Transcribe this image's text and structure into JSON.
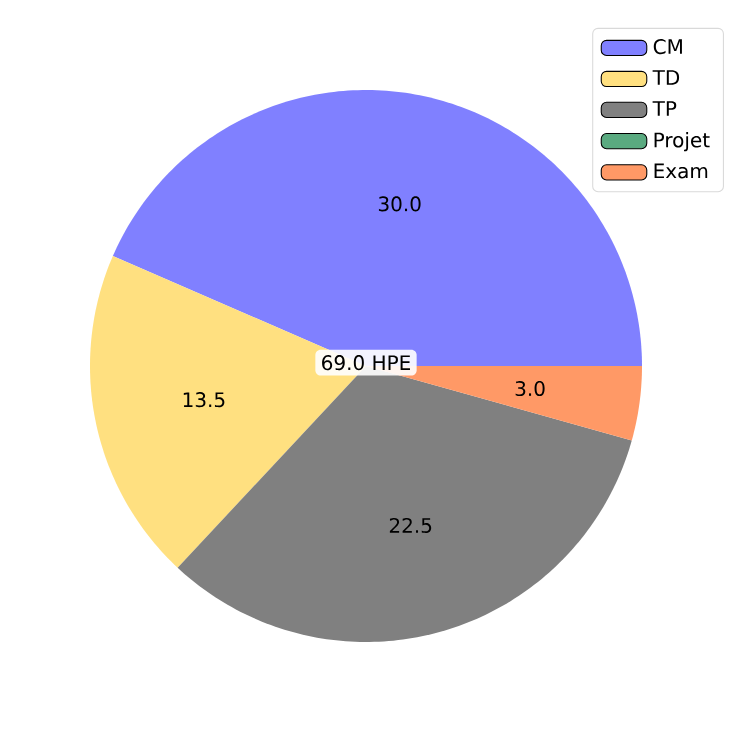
{
  "chart_data": {
    "type": "pie",
    "categories": [
      "CM",
      "TD",
      "TP",
      "Projet",
      "Exam"
    ],
    "values": [
      30,
      13.5,
      22.5,
      0,
      3
    ],
    "colors": [
      "#8080ff",
      "#ffe080",
      "#808080",
      "#5aaa80",
      "#ff9966"
    ],
    "value_labels": [
      "30.0",
      "13.5",
      "22.5",
      null,
      "3.0"
    ],
    "annotations": [
      "69.0 HPE"
    ],
    "legend": "top right"
  }
}
